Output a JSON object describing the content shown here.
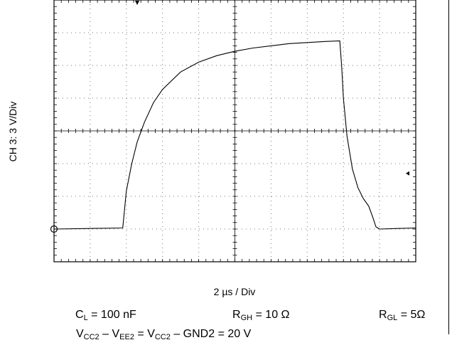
{
  "chart_data": {
    "type": "line",
    "ylabel": "CH 3: 3 V/Div",
    "xlabel": "2 µs / Div",
    "x_unit": "µs",
    "y_unit": "V",
    "grid": true,
    "x_divisions": 10,
    "y_divisions": 8,
    "xlim": [
      0,
      20
    ],
    "ylim": [
      -3,
      21
    ],
    "series": [
      {
        "x": [
          0,
          3.8,
          4.0,
          4.3,
          4.6,
          5.0,
          5.5,
          6.0,
          7.0,
          8.0,
          9.0,
          10.0,
          11.0,
          12.0,
          13.0,
          14.0,
          15.0,
          15.8,
          15.9,
          16.0,
          16.2,
          16.5,
          16.8,
          17.1,
          17.4,
          17.6,
          17.8,
          18.0,
          19.0,
          20.0
        ],
        "y": [
          0,
          0.1,
          3.5,
          6.0,
          8.0,
          9.8,
          11.6,
          12.8,
          14.4,
          15.3,
          15.9,
          16.3,
          16.6,
          16.8,
          17.0,
          17.1,
          17.2,
          17.25,
          15.0,
          12.0,
          8.5,
          5.5,
          3.8,
          2.8,
          2.1,
          1.2,
          0.2,
          0,
          0.05,
          0.1
        ]
      }
    ]
  },
  "conditions": {
    "cl": {
      "main": "C",
      "sub": "L",
      "rest": " = 100 nF"
    },
    "rgh": {
      "main": "R",
      "sub": "GH",
      "rest": " = 10 Ω"
    },
    "rgl": {
      "main": "R",
      "sub": "GL",
      "rest": " = 5Ω"
    },
    "vcc": {
      "p1": "V",
      "s1": "CC2",
      "p2": " – V",
      "s2": "EE2",
      "p3": " = V",
      "s3": "CC2",
      "p4": " – GND2 = 20 V"
    }
  }
}
